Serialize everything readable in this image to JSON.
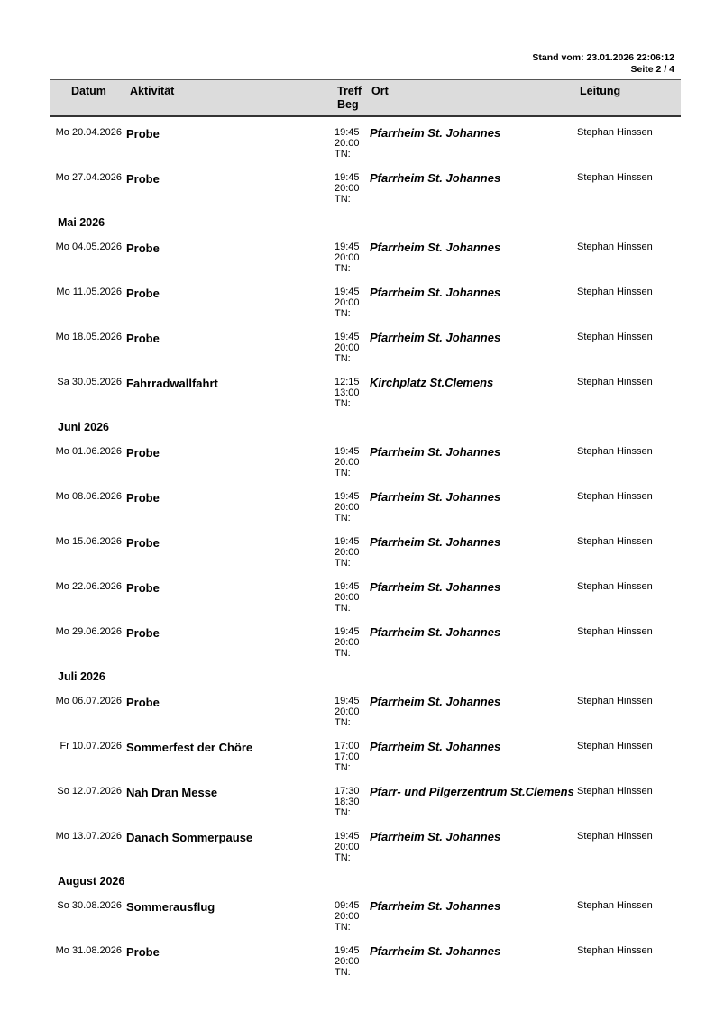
{
  "header_info": {
    "stand": "Stand vom: 23.01.2026 22:06:12",
    "page": "Seite 2 / 4"
  },
  "columns": {
    "datum": "Datum",
    "aktivitaet": "Aktivität",
    "treff": "Treff",
    "beg": "Beg",
    "ort": "Ort",
    "leitung": "Leitung"
  },
  "rows": [
    {
      "type": "event",
      "date": "Mo 20.04.2026",
      "activity": "Probe",
      "treff": "19:45",
      "beg": "20:00",
      "tn": "TN:",
      "ort": "Pfarrheim St. Johannes",
      "leitung": "Stephan Hinssen"
    },
    {
      "type": "event",
      "date": "Mo 27.04.2026",
      "activity": "Probe",
      "treff": "19:45",
      "beg": "20:00",
      "tn": "TN:",
      "ort": "Pfarrheim St. Johannes",
      "leitung": "Stephan Hinssen"
    },
    {
      "type": "month",
      "label": "Mai 2026"
    },
    {
      "type": "event",
      "date": "Mo 04.05.2026",
      "activity": "Probe",
      "treff": "19:45",
      "beg": "20:00",
      "tn": "TN:",
      "ort": "Pfarrheim St. Johannes",
      "leitung": "Stephan Hinssen"
    },
    {
      "type": "event",
      "date": "Mo 11.05.2026",
      "activity": "Probe",
      "treff": "19:45",
      "beg": "20:00",
      "tn": "TN:",
      "ort": "Pfarrheim St. Johannes",
      "leitung": "Stephan Hinssen"
    },
    {
      "type": "event",
      "date": "Mo 18.05.2026",
      "activity": "Probe",
      "treff": "19:45",
      "beg": "20:00",
      "tn": "TN:",
      "ort": "Pfarrheim St. Johannes",
      "leitung": "Stephan Hinssen"
    },
    {
      "type": "event",
      "date": "Sa 30.05.2026",
      "activity": "Fahrradwallfahrt",
      "treff": "12:15",
      "beg": "13:00",
      "tn": "TN:",
      "ort": "Kirchplatz St.Clemens",
      "leitung": "Stephan Hinssen"
    },
    {
      "type": "month",
      "label": "Juni 2026"
    },
    {
      "type": "event",
      "date": "Mo 01.06.2026",
      "activity": "Probe",
      "treff": "19:45",
      "beg": "20:00",
      "tn": "TN:",
      "ort": "Pfarrheim St. Johannes",
      "leitung": "Stephan Hinssen"
    },
    {
      "type": "event",
      "date": "Mo 08.06.2026",
      "activity": "Probe",
      "treff": "19:45",
      "beg": "20:00",
      "tn": "TN:",
      "ort": "Pfarrheim St. Johannes",
      "leitung": "Stephan Hinssen"
    },
    {
      "type": "event",
      "date": "Mo 15.06.2026",
      "activity": "Probe",
      "treff": "19:45",
      "beg": "20:00",
      "tn": "TN:",
      "ort": "Pfarrheim St. Johannes",
      "leitung": "Stephan Hinssen"
    },
    {
      "type": "event",
      "date": "Mo 22.06.2026",
      "activity": "Probe",
      "treff": "19:45",
      "beg": "20:00",
      "tn": "TN:",
      "ort": "Pfarrheim St. Johannes",
      "leitung": "Stephan Hinssen"
    },
    {
      "type": "event",
      "date": "Mo 29.06.2026",
      "activity": "Probe",
      "treff": "19:45",
      "beg": "20:00",
      "tn": "TN:",
      "ort": "Pfarrheim St. Johannes",
      "leitung": "Stephan Hinssen"
    },
    {
      "type": "month",
      "label": "Juli 2026"
    },
    {
      "type": "event",
      "date": "Mo 06.07.2026",
      "activity": "Probe",
      "treff": "19:45",
      "beg": "20:00",
      "tn": "TN:",
      "ort": "Pfarrheim St. Johannes",
      "leitung": "Stephan Hinssen"
    },
    {
      "type": "event",
      "date": "Fr 10.07.2026",
      "activity": "Sommerfest der Chöre",
      "treff": "17:00",
      "beg": "17:00",
      "tn": "TN:",
      "ort": "Pfarrheim St. Johannes",
      "leitung": "Stephan Hinssen"
    },
    {
      "type": "event",
      "date": "So 12.07.2026",
      "activity": "Nah Dran Messe",
      "treff": "17:30",
      "beg": "18:30",
      "tn": "TN:",
      "ort": "Pfarr- und Pilgerzentrum St.Clemens",
      "leitung": "Stephan Hinssen"
    },
    {
      "type": "event",
      "date": "Mo 13.07.2026",
      "activity": "Danach Sommerpause",
      "treff": "19:45",
      "beg": "20:00",
      "tn": "TN:",
      "ort": "Pfarrheim St. Johannes",
      "leitung": "Stephan Hinssen"
    },
    {
      "type": "month",
      "label": "August 2026"
    },
    {
      "type": "event",
      "date": "So 30.08.2026",
      "activity": "Sommerausflug",
      "treff": "09:45",
      "beg": "20:00",
      "tn": "TN:",
      "ort": "Pfarrheim St. Johannes",
      "leitung": "Stephan Hinssen"
    },
    {
      "type": "event",
      "date": "Mo 31.08.2026",
      "activity": "Probe",
      "treff": "19:45",
      "beg": "20:00",
      "tn": "TN:",
      "ort": "Pfarrheim St. Johannes",
      "leitung": "Stephan Hinssen"
    }
  ]
}
